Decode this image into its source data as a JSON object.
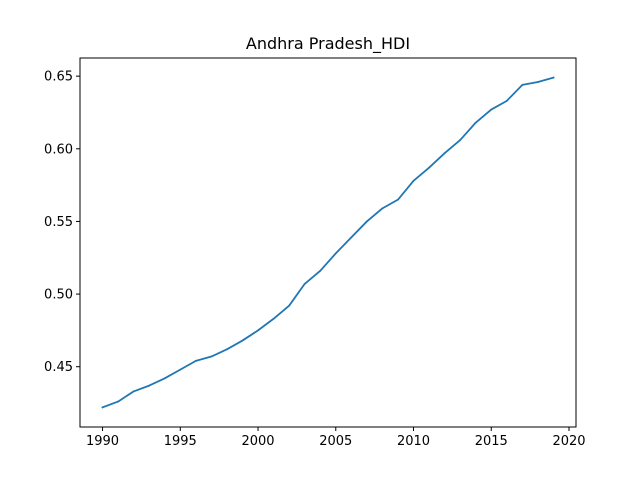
{
  "chart_data": {
    "type": "line",
    "title": "Andhra Pradesh_HDI",
    "xlabel": "",
    "ylabel": "",
    "xlim": [
      1988.55,
      2020.45
    ],
    "ylim": [
      0.4085,
      0.6625
    ],
    "x_ticks": [
      1990,
      1995,
      2000,
      2005,
      2010,
      2015,
      2020
    ],
    "y_ticks": [
      0.45,
      0.5,
      0.55,
      0.6,
      0.65
    ],
    "x_tick_labels": [
      "1990",
      "1995",
      "2000",
      "2005",
      "2010",
      "2015",
      "2020"
    ],
    "y_tick_labels": [
      "0.45",
      "0.50",
      "0.55",
      "0.60",
      "0.65"
    ],
    "grid": false,
    "legend": "none",
    "line_color": "#1f77b4",
    "x": [
      1990,
      1991,
      1992,
      1993,
      1994,
      1995,
      1996,
      1997,
      1998,
      1999,
      2000,
      2001,
      2002,
      2003,
      2004,
      2005,
      2006,
      2007,
      2008,
      2009,
      2010,
      2011,
      2012,
      2013,
      2014,
      2015,
      2016,
      2017,
      2018,
      2019
    ],
    "series": [
      {
        "values": [
          0.422,
          0.426,
          0.433,
          0.437,
          0.442,
          0.448,
          0.454,
          0.457,
          0.462,
          0.468,
          0.475,
          0.483,
          0.492,
          0.507,
          0.516,
          0.528,
          0.539,
          0.55,
          0.559,
          0.565,
          0.578,
          0.587,
          0.597,
          0.606,
          0.618,
          0.627,
          0.633,
          0.644,
          0.646,
          0.649
        ]
      }
    ]
  }
}
